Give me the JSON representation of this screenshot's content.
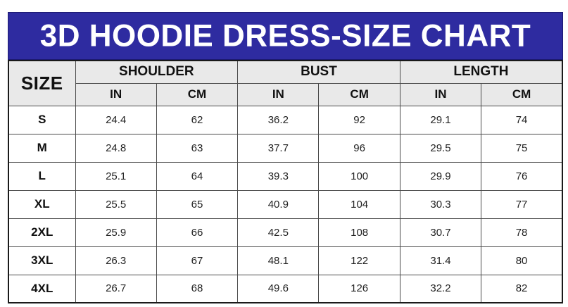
{
  "title": "3D HOODIE DRESS-SIZE CHART",
  "colors": {
    "banner_bg": "#2E2BA0",
    "banner_text": "#FFFFFF",
    "header_bg": "#E9E9E9",
    "row_bg": "#FFFFFF",
    "border": "#4A4A4A",
    "outer_border": "#1A1A1A",
    "text": "#111111"
  },
  "table": {
    "size_header": "SIZE",
    "groups": [
      {
        "label": "SHOULDER"
      },
      {
        "label": "BUST"
      },
      {
        "label": "LENGTH"
      }
    ],
    "unit_headers": [
      "IN",
      "CM",
      "IN",
      "CM",
      "IN",
      "CM"
    ],
    "rows": [
      {
        "size": "S",
        "values": [
          "24.4",
          "62",
          "36.2",
          "92",
          "29.1",
          "74"
        ]
      },
      {
        "size": "M",
        "values": [
          "24.8",
          "63",
          "37.7",
          "96",
          "29.5",
          "75"
        ]
      },
      {
        "size": "L",
        "values": [
          "25.1",
          "64",
          "39.3",
          "100",
          "29.9",
          "76"
        ]
      },
      {
        "size": "XL",
        "values": [
          "25.5",
          "65",
          "40.9",
          "104",
          "30.3",
          "77"
        ]
      },
      {
        "size": "2XL",
        "values": [
          "25.9",
          "66",
          "42.5",
          "108",
          "30.7",
          "78"
        ]
      },
      {
        "size": "3XL",
        "values": [
          "26.3",
          "67",
          "48.1",
          "122",
          "31.4",
          "80"
        ]
      },
      {
        "size": "4XL",
        "values": [
          "26.7",
          "68",
          "49.6",
          "126",
          "32.2",
          "82"
        ]
      }
    ]
  },
  "chart_data": {
    "type": "table",
    "title": "3D HOODIE DRESS-SIZE CHART",
    "columns": [
      "SIZE",
      "SHOULDER IN",
      "SHOULDER CM",
      "BUST IN",
      "BUST CM",
      "LENGTH IN",
      "LENGTH CM"
    ],
    "rows": [
      [
        "S",
        24.4,
        62,
        36.2,
        92,
        29.1,
        74
      ],
      [
        "M",
        24.8,
        63,
        37.7,
        96,
        29.5,
        75
      ],
      [
        "L",
        25.1,
        64,
        39.3,
        100,
        29.9,
        76
      ],
      [
        "XL",
        25.5,
        65,
        40.9,
        104,
        30.3,
        77
      ],
      [
        "2XL",
        25.9,
        66,
        42.5,
        108,
        30.7,
        78
      ],
      [
        "3XL",
        26.3,
        67,
        48.1,
        122,
        31.4,
        80
      ],
      [
        "4XL",
        26.7,
        68,
        49.6,
        126,
        32.2,
        82
      ]
    ]
  }
}
